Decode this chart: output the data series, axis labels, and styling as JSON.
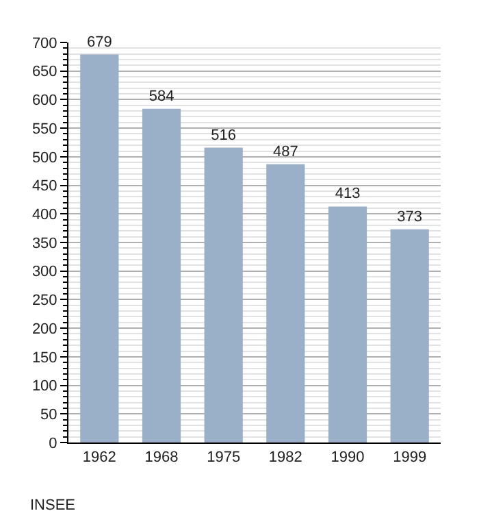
{
  "chart_data": {
    "type": "bar",
    "categories": [
      "1962",
      "1968",
      "1975",
      "1982",
      "1990",
      "1999"
    ],
    "values": [
      679,
      584,
      516,
      487,
      413,
      373
    ],
    "color": "#9ab0c9",
    "ylim": [
      0,
      700
    ],
    "yticks": [
      0,
      50,
      100,
      150,
      200,
      250,
      300,
      350,
      400,
      450,
      500,
      550,
      600,
      650,
      700
    ],
    "grid": "y",
    "data_labels": true,
    "annotations": [
      "INSEE"
    ]
  }
}
